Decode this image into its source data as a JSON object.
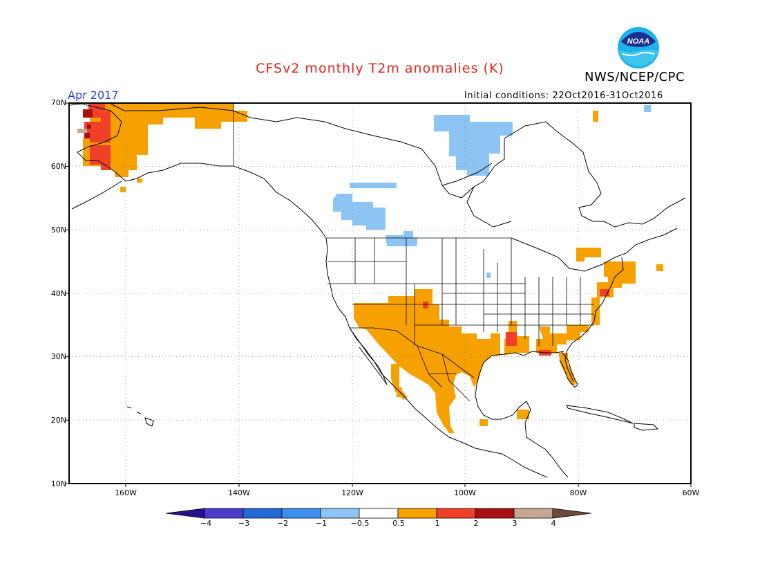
{
  "header": {
    "title": "CFSv2 monthly T2m anomalies (K)",
    "agency": "NWS/NCEP/CPC",
    "valid_month": "Apr 2017",
    "initial_conditions": "Initial conditions: 22Oct2016-31Oct2016",
    "logo_text": "NOAA"
  },
  "colors": {
    "title": "#e0241b",
    "valid_month": "#2a3bd8",
    "lt_blue": "#8cc4f4",
    "orange": "#f7a100",
    "red": "#f0402a",
    "dark_red": "#a80f0f",
    "brown": "#c6a594"
  },
  "map": {
    "projection": "lat-lon",
    "lon_range": [
      -170,
      -60
    ],
    "lat_range": [
      10,
      70
    ],
    "lat_labels": [
      "70N",
      "60N",
      "50N",
      "40N",
      "30N",
      "20N",
      "10N"
    ],
    "lon_labels": [
      "160W",
      "140W",
      "120W",
      "100W",
      "80W",
      "60W"
    ]
  },
  "colorbar": {
    "bins": [
      {
        "color": "#2a0f8c"
      },
      {
        "color": "#4b3ccd"
      },
      {
        "color": "#2468d8"
      },
      {
        "color": "#3c8ff0"
      },
      {
        "color": "#8cc4f4"
      },
      {
        "color": "#ffffff"
      },
      {
        "color": "#f7a100"
      },
      {
        "color": "#f0402a"
      },
      {
        "color": "#a80f0f"
      },
      {
        "color": "#c6a594"
      },
      {
        "color": "#6e4a3c"
      }
    ],
    "labels": [
      "−4",
      "−3",
      "−2",
      "−1",
      "−0.5",
      "0.5",
      "1",
      "2",
      "3",
      "4"
    ]
  }
}
